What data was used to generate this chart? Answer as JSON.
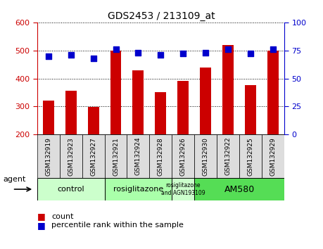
{
  "title": "GDS2453 / 213109_at",
  "samples": [
    "GSM132919",
    "GSM132923",
    "GSM132927",
    "GSM132921",
    "GSM132924",
    "GSM132928",
    "GSM132926",
    "GSM132930",
    "GSM132922",
    "GSM132925",
    "GSM132929"
  ],
  "counts": [
    320,
    355,
    298,
    500,
    430,
    350,
    390,
    440,
    520,
    375,
    500
  ],
  "percentiles": [
    70,
    71,
    68,
    76,
    73,
    71,
    72,
    73,
    76,
    72,
    76
  ],
  "ymin": 200,
  "ymax": 600,
  "yticks_left": [
    200,
    300,
    400,
    500,
    600
  ],
  "yticks_right": [
    0,
    25,
    50,
    75,
    100
  ],
  "y2min": 0,
  "y2max": 100,
  "bar_color": "#cc0000",
  "dot_color": "#0000cc",
  "agent_groups": [
    {
      "label": "control",
      "start": 0,
      "end": 3,
      "color": "#ccffcc",
      "fontsize": 8
    },
    {
      "label": "rosiglitazone",
      "start": 3,
      "end": 6,
      "color": "#aaffaa",
      "fontsize": 8
    },
    {
      "label": "rosiglitazone\nand AGN193109",
      "start": 6,
      "end": 7,
      "color": "#ccffcc",
      "fontsize": 5.5
    },
    {
      "label": "AM580",
      "start": 7,
      "end": 11,
      "color": "#55dd55",
      "fontsize": 9
    }
  ],
  "legend_count_label": "count",
  "legend_percentile_label": "percentile rank within the sample",
  "xlabel_agent": "agent",
  "tick_label_fontsize": 6.5,
  "bar_width": 0.5,
  "dot_size": 35,
  "sample_box_color": "#dddddd"
}
